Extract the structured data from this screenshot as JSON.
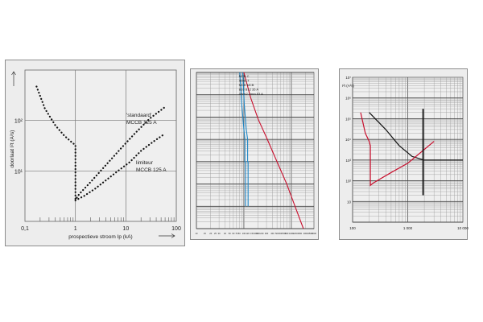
{
  "chart_data": [
    {
      "type": "scatter",
      "xscale": "log",
      "yscale": "log",
      "xlim": [
        0.1,
        100
      ],
      "ylim": [
        1,
        1000
      ],
      "grid": true,
      "xlabel": "prospectieve stroom Ip (kA)",
      "ylabel": "doorlaat I²t (A²s)",
      "xtick_labels": [
        "0,1",
        "1",
        "10",
        "100"
      ],
      "ytick_labels": [
        "10¹",
        "10²"
      ],
      "annotations": [
        {
          "lines": [
            "'standaard'",
            "MCCB 125 A"
          ]
        },
        {
          "lines": [
            "limiteur",
            "MCCB 125 A"
          ]
        }
      ],
      "series": [
        {
          "name": "'standaard' MCCB 125 A",
          "style": "dotted",
          "x": [
            0.17,
            0.25,
            0.4,
            0.6,
            0.9,
            1.0,
            1.0,
            1.2,
            2,
            4,
            8,
            15,
            30,
            60
          ],
          "y": [
            470,
            170,
            80,
            50,
            35,
            33,
            2.7,
            3.5,
            6,
            13,
            28,
            55,
            110,
            185
          ]
        },
        {
          "name": "limiteur MCCB 125 A",
          "style": "dotted",
          "x": [
            1.0,
            1.5,
            2.5,
            4,
            7,
            12,
            20,
            35,
            60
          ],
          "y": [
            2.6,
            3.2,
            4.5,
            6.5,
            10,
            15,
            25,
            38,
            55
          ]
        }
      ]
    },
    {
      "type": "line",
      "xscale": "log",
      "yscale": "log",
      "grid": true,
      "xtick_labels": [
        "10",
        "15",
        "20",
        "25",
        "30",
        "40",
        "50",
        "60",
        "70",
        "80",
        "100",
        "120",
        "150",
        "180",
        "200",
        "240",
        "300",
        "400",
        "500",
        "600",
        "700",
        "800",
        "1000",
        "1200",
        "1500",
        "2000",
        "2500",
        "3000"
      ],
      "legend_text": [
        "MCB C",
        "SMELT",
        "MCB MCB",
        "B10  B12  35 A",
        "4mm2  4mm  63 A"
      ],
      "series": [
        {
          "name": "MCB C",
          "color": "#1e86c6",
          "x": [
            82,
            90,
            100,
            105,
            105,
            108,
            108
          ],
          "y": [
            10000,
            400,
            30,
            10,
            1,
            1,
            0.01
          ]
        },
        {
          "name": "MCB MCB",
          "color": "#1e86c6",
          "x": [
            95,
            102,
            112,
            120,
            120,
            123,
            123
          ],
          "y": [
            10000,
            400,
            30,
            10,
            1,
            1,
            0.01
          ]
        },
        {
          "name": "SMELT",
          "color": "#c8102e",
          "x": [
            100,
            140,
            200,
            300,
            500,
            800,
            1200,
            1800
          ],
          "y": [
            10000,
            700,
            80,
            12,
            1,
            0.1,
            0.01,
            0.001
          ]
        }
      ]
    },
    {
      "type": "line",
      "xscale": "log",
      "yscale": "log",
      "grid": true,
      "xlim": [
        100,
        10000
      ],
      "ylim": [
        1,
        10000000
      ],
      "ylabel": "I²t (A²s)",
      "xtick_labels": [
        "100",
        "1 000",
        "10 000"
      ],
      "ytick_labels": [
        "10⁷",
        "10⁶",
        "10⁵",
        "10⁴",
        "10³",
        "10²",
        "10"
      ],
      "series": [
        {
          "name": "black",
          "color": "#111111",
          "x": [
            200,
            400,
            700,
            1200,
            2000,
            3000,
            10000
          ],
          "y": [
            200000,
            30000,
            5000,
            1500,
            1000,
            1000,
            1000
          ]
        },
        {
          "name": "red",
          "color": "#c8102e",
          "x": [
            140,
            170,
            200,
            210,
            210,
            240,
            500,
            1000,
            3000
          ],
          "y": [
            200000,
            20000,
            8000,
            5000,
            60,
            80,
            250,
            700,
            8000
          ]
        },
        {
          "name": "black vertical",
          "color": "#111111",
          "x": [
            1900,
            1900
          ],
          "y": [
            20,
            300000
          ]
        }
      ]
    }
  ]
}
